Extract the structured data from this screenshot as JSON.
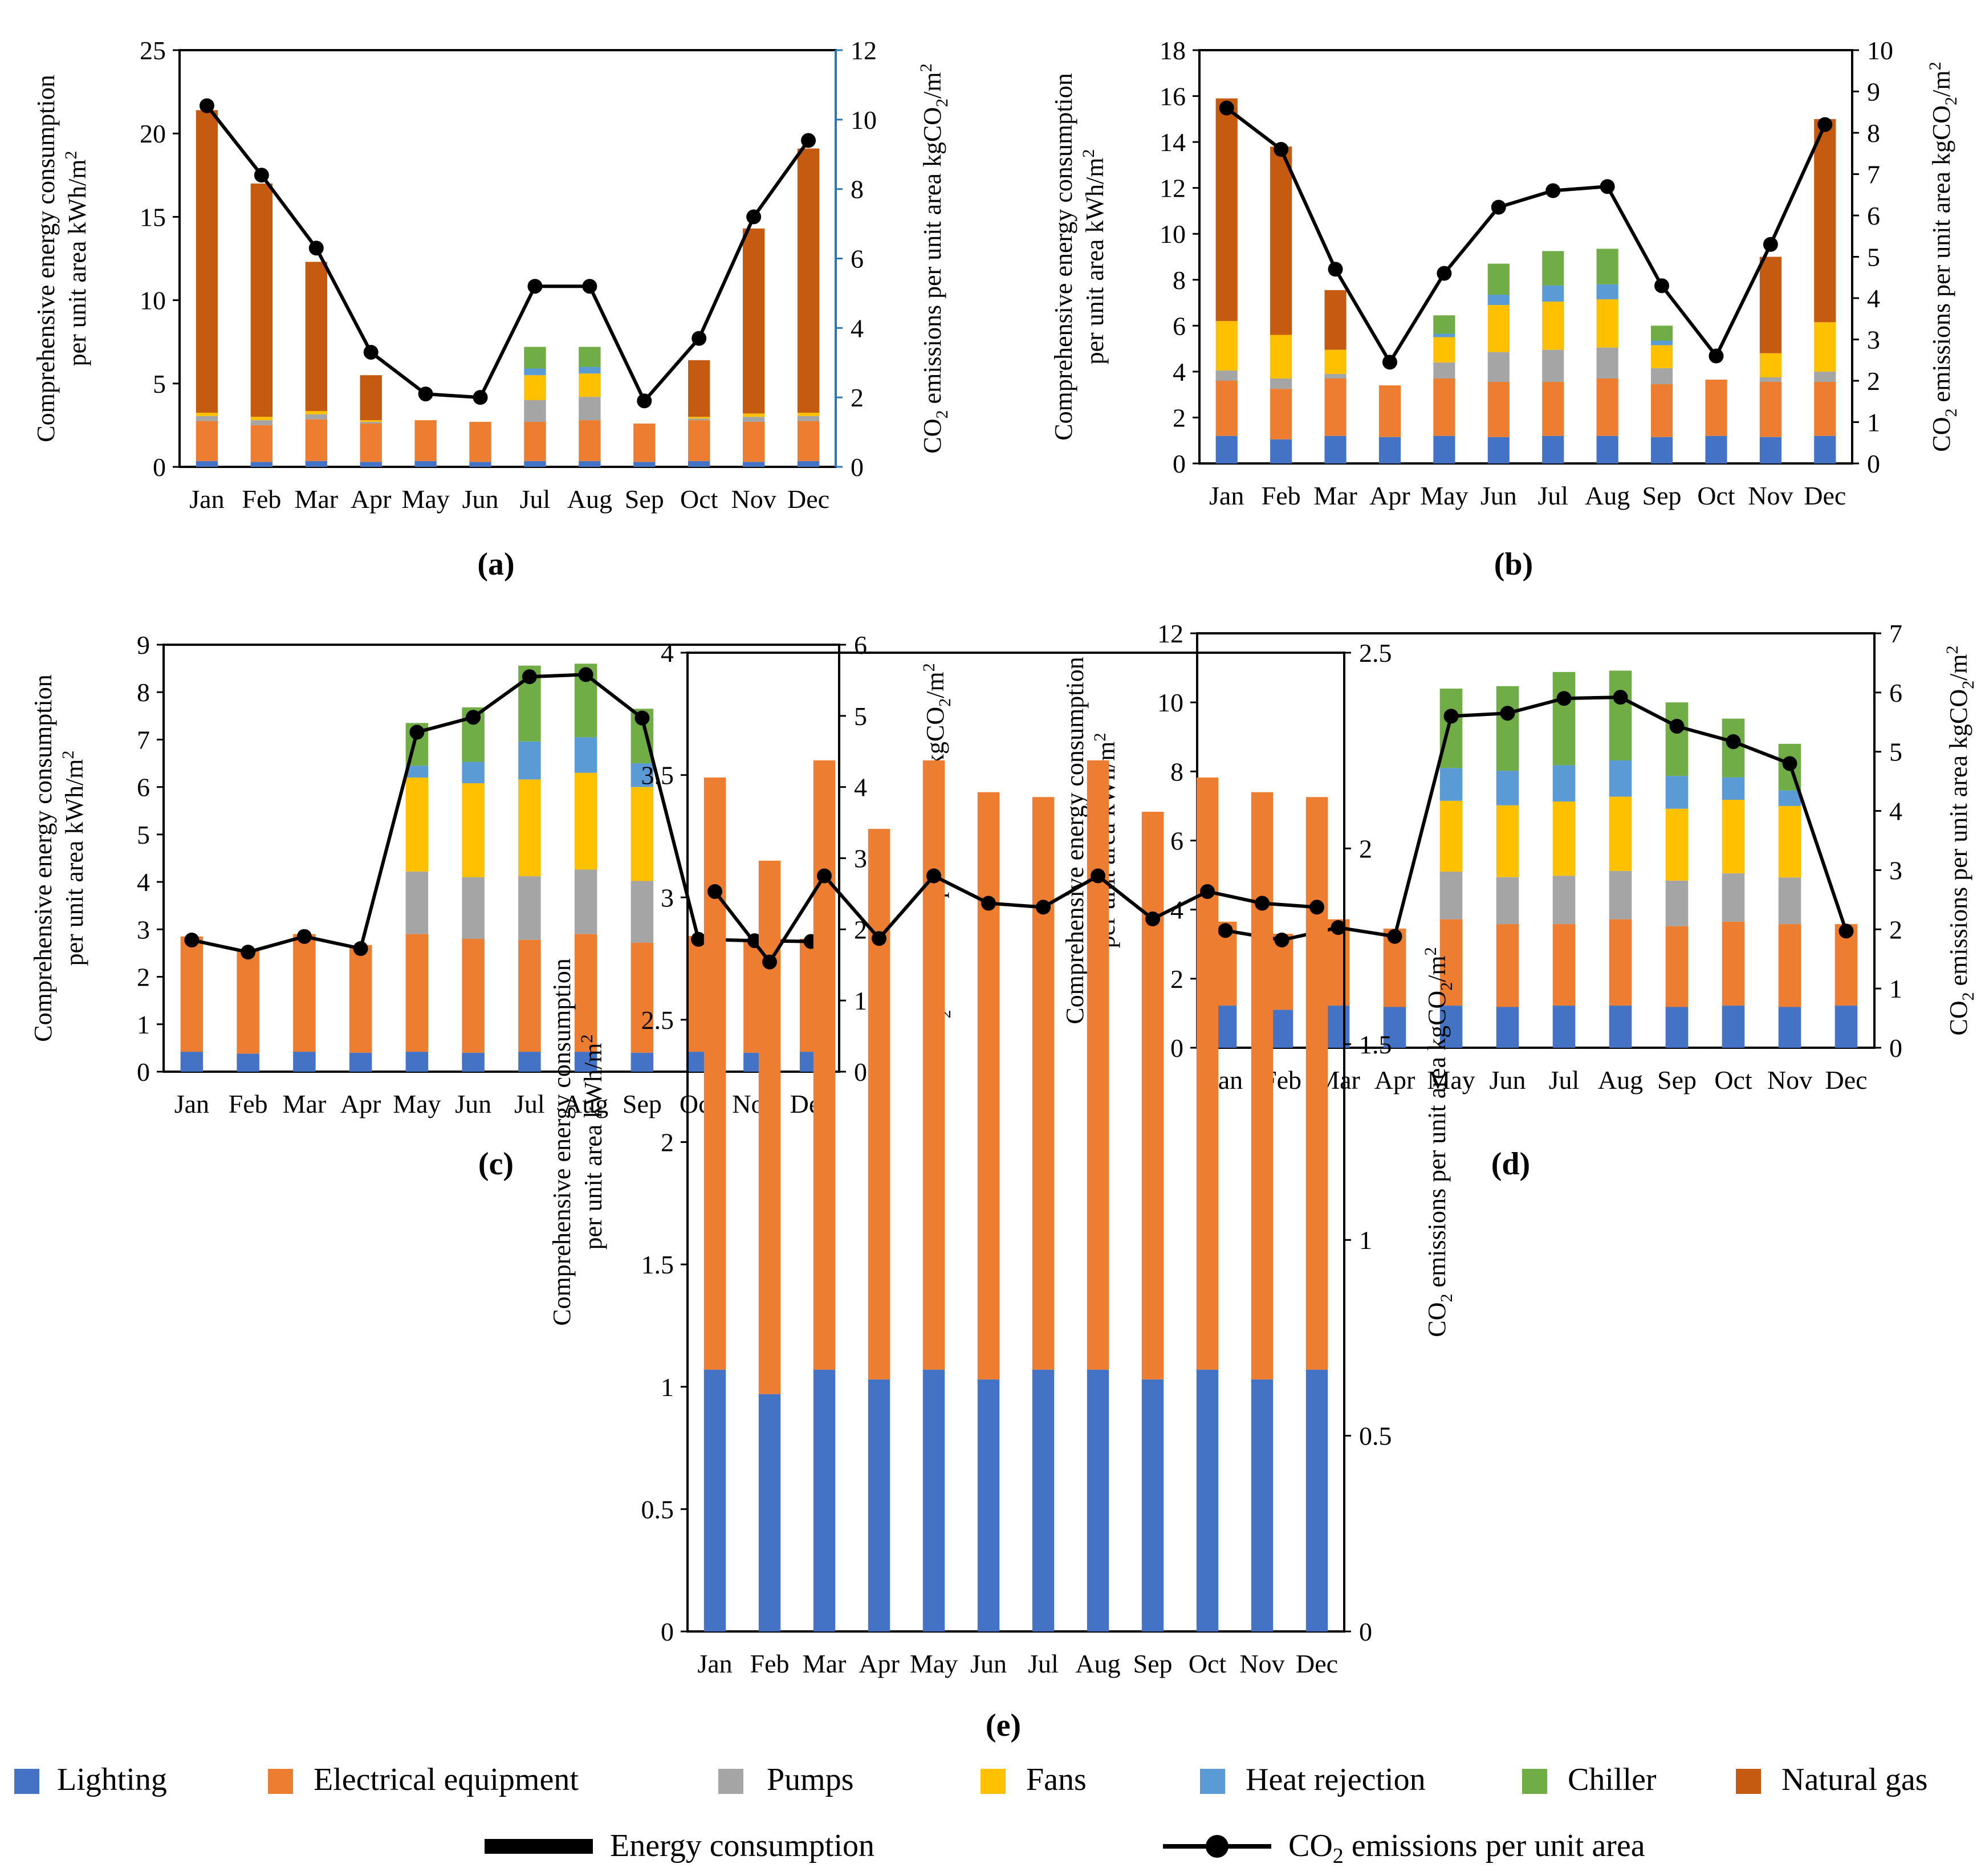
{
  "months": [
    "Jan",
    "Feb",
    "Mar",
    "Apr",
    "May",
    "Jun",
    "Jul",
    "Aug",
    "Sep",
    "Oct",
    "Nov",
    "Dec"
  ],
  "components": [
    {
      "key": "lighting",
      "name": "Lighting",
      "color": "#4472c4"
    },
    {
      "key": "electrical",
      "name": "Electrical equipment",
      "color": "#ed7d31"
    },
    {
      "key": "pumps",
      "name": "Pumps",
      "color": "#a5a5a5"
    },
    {
      "key": "fans",
      "name": "Fans",
      "color": "#ffc000"
    },
    {
      "key": "heat_rejection",
      "name": "Heat rejection",
      "color": "#5b9bd5"
    },
    {
      "key": "chiller",
      "name": "Chiller",
      "color": "#70ad47"
    },
    {
      "key": "natural_gas",
      "name": "Natural gas",
      "color": "#c55a11"
    }
  ],
  "legend": {
    "energy_consumption": "Energy consumption",
    "co2_prefix": "CO",
    "co2_sub": "2",
    "co2_suffix": " emissions per unit area"
  },
  "axis_text": {
    "left_line1": "Comprehensive energy consumption",
    "left_line2": "per unit area kWh/m",
    "left_sup": "2",
    "right_pre": "CO",
    "right_sub": "2",
    "right_mid": " emissions per unit area kgCO",
    "right_sub2": "2",
    "right_post": "/m",
    "right_sup": "2"
  },
  "chart_data": [
    {
      "type": "bar",
      "panel_label": "(a)",
      "categories": [
        "Jan",
        "Feb",
        "Mar",
        "Apr",
        "May",
        "Jun",
        "Jul",
        "Aug",
        "Sep",
        "Oct",
        "Nov",
        "Dec"
      ],
      "ylabel": "Comprehensive energy consumption per unit area kWh/m2",
      "y2label": "CO2 emissions per unit area kgCO2/m2",
      "ylim": [
        0,
        25
      ],
      "yticks": [
        0,
        5,
        10,
        15,
        20,
        25
      ],
      "y2lim": [
        0,
        12
      ],
      "y2ticks": [
        0,
        2,
        4,
        6,
        8,
        10,
        12
      ],
      "series": [
        {
          "name": "Lighting",
          "values": [
            0.35,
            0.3,
            0.35,
            0.3,
            0.35,
            0.3,
            0.35,
            0.35,
            0.3,
            0.35,
            0.3,
            0.35
          ]
        },
        {
          "name": "Electrical equipment",
          "values": [
            2.4,
            2.2,
            2.5,
            2.3,
            2.45,
            2.4,
            2.35,
            2.45,
            2.3,
            2.45,
            2.4,
            2.4
          ]
        },
        {
          "name": "Pumps",
          "values": [
            0.3,
            0.3,
            0.3,
            0.1,
            0,
            0,
            1.3,
            1.4,
            0,
            0.1,
            0.3,
            0.3
          ]
        },
        {
          "name": "Fans",
          "values": [
            0.2,
            0.2,
            0.2,
            0.1,
            0,
            0,
            1.5,
            1.4,
            0,
            0.1,
            0.2,
            0.2
          ]
        },
        {
          "name": "Heat rejection",
          "values": [
            0,
            0,
            0,
            0,
            0,
            0,
            0.4,
            0.4,
            0,
            0,
            0,
            0
          ]
        },
        {
          "name": "Chiller",
          "values": [
            0,
            0,
            0,
            0,
            0,
            0,
            1.3,
            1.2,
            0,
            0,
            0,
            0
          ]
        },
        {
          "name": "Natural gas",
          "values": [
            18.15,
            14.0,
            8.95,
            2.7,
            0,
            0,
            0,
            0,
            0,
            3.4,
            11.1,
            15.85
          ]
        }
      ],
      "line": {
        "name": "CO2 emissions per unit area",
        "axis": "right",
        "values": [
          10.4,
          8.4,
          6.3,
          3.3,
          2.1,
          2.0,
          5.2,
          5.2,
          1.9,
          3.7,
          7.2,
          9.4
        ]
      }
    },
    {
      "type": "bar",
      "panel_label": "(b)",
      "categories": [
        "Jan",
        "Feb",
        "Mar",
        "Apr",
        "May",
        "Jun",
        "Jul",
        "Aug",
        "Sep",
        "Oct",
        "Nov",
        "Dec"
      ],
      "ylabel": "Comprehensive energy consumption per unit area kWh/m2",
      "y2label": "CO2 emissions per unit area kgCO2/m2",
      "ylim": [
        0,
        18
      ],
      "yticks": [
        0,
        2,
        4,
        6,
        8,
        10,
        12,
        14,
        16,
        18
      ],
      "y2lim": [
        0,
        10
      ],
      "y2ticks": [
        0,
        1,
        2,
        3,
        4,
        5,
        6,
        7,
        8,
        9,
        10
      ],
      "series": [
        {
          "name": "Lighting",
          "values": [
            1.2,
            1.05,
            1.2,
            1.15,
            1.2,
            1.15,
            1.2,
            1.2,
            1.15,
            1.2,
            1.15,
            1.2
          ]
        },
        {
          "name": "Electrical equipment",
          "values": [
            2.4,
            2.2,
            2.5,
            2.25,
            2.5,
            2.4,
            2.35,
            2.5,
            2.3,
            2.45,
            2.4,
            2.35
          ]
        },
        {
          "name": "Pumps",
          "values": [
            0.45,
            0.45,
            0.2,
            0,
            0.7,
            1.3,
            1.4,
            1.35,
            0.7,
            0,
            0.2,
            0.45
          ]
        },
        {
          "name": "Fans",
          "values": [
            2.15,
            1.9,
            1.05,
            0,
            1.1,
            2.05,
            2.1,
            2.1,
            1.0,
            0,
            1.05,
            2.15
          ]
        },
        {
          "name": "Heat rejection",
          "values": [
            0,
            0,
            0,
            0,
            0.15,
            0.45,
            0.7,
            0.65,
            0.2,
            0,
            0,
            0
          ]
        },
        {
          "name": "Chiller",
          "values": [
            0,
            0,
            0,
            0,
            0.8,
            1.35,
            1.5,
            1.55,
            0.65,
            0,
            0,
            0
          ]
        },
        {
          "name": "Natural gas",
          "values": [
            9.7,
            8.2,
            2.6,
            0,
            0,
            0,
            0,
            0,
            0,
            0,
            4.2,
            8.85
          ]
        }
      ],
      "line": {
        "name": "CO2 emissions per unit area",
        "axis": "right",
        "values": [
          8.6,
          7.6,
          4.7,
          2.45,
          4.6,
          6.2,
          6.6,
          6.7,
          4.3,
          2.6,
          5.3,
          8.2
        ]
      }
    },
    {
      "type": "bar",
      "panel_label": "(c)",
      "categories": [
        "Jan",
        "Feb",
        "Mar",
        "Apr",
        "May",
        "Jun",
        "Jul",
        "Aug",
        "Sep",
        "Oct",
        "Nov",
        "Dec"
      ],
      "ylabel": "Comprehensive energy consumption per unit area kWh/m2",
      "y2label": "CO2 emissions per unit area kgCO2/m2",
      "ylim": [
        0,
        9
      ],
      "yticks": [
        0,
        1,
        2,
        3,
        4,
        5,
        6,
        7,
        8,
        9
      ],
      "y2lim": [
        0,
        6
      ],
      "y2ticks": [
        0,
        1,
        2,
        3,
        4,
        5,
        6
      ],
      "series": [
        {
          "name": "Lighting",
          "values": [
            0.42,
            0.38,
            0.42,
            0.4,
            0.42,
            0.4,
            0.42,
            0.42,
            0.4,
            0.42,
            0.4,
            0.42
          ]
        },
        {
          "name": "Electrical equipment",
          "values": [
            2.43,
            2.2,
            2.48,
            2.27,
            2.48,
            2.4,
            2.36,
            2.48,
            2.32,
            2.44,
            2.38,
            2.38
          ]
        },
        {
          "name": "Pumps",
          "values": [
            0,
            0,
            0,
            0,
            1.32,
            1.3,
            1.34,
            1.36,
            1.3,
            0,
            0,
            0
          ]
        },
        {
          "name": "Fans",
          "values": [
            0,
            0,
            0,
            0,
            1.98,
            1.98,
            2.04,
            2.04,
            1.98,
            0,
            0,
            0
          ]
        },
        {
          "name": "Heat rejection",
          "values": [
            0,
            0,
            0,
            0,
            0.25,
            0.45,
            0.8,
            0.75,
            0.5,
            0,
            0,
            0
          ]
        },
        {
          "name": "Chiller",
          "values": [
            0,
            0,
            0,
            0,
            0.9,
            1.15,
            1.6,
            1.55,
            1.15,
            0,
            0,
            0
          ]
        },
        {
          "name": "Natural gas",
          "values": [
            0,
            0,
            0,
            0,
            0,
            0,
            0,
            0,
            0,
            0,
            0,
            0
          ]
        }
      ],
      "line": {
        "name": "CO2 emissions per unit area",
        "axis": "right",
        "values": [
          1.85,
          1.68,
          1.9,
          1.73,
          4.77,
          4.98,
          5.55,
          5.58,
          4.97,
          1.86,
          1.84,
          1.83
        ]
      }
    },
    {
      "type": "bar",
      "panel_label": "(d)",
      "categories": [
        "Jan",
        "Feb",
        "Mar",
        "Apr",
        "May",
        "Jun",
        "Jul",
        "Aug",
        "Sep",
        "Oct",
        "Nov",
        "Dec"
      ],
      "ylabel": "Comprehensive energy consumption per unit area kWh/m2",
      "y2label": "CO2 emissions per unit area kgCO2/m2",
      "ylim": [
        0,
        12
      ],
      "yticks": [
        0,
        2,
        4,
        6,
        8,
        10,
        12
      ],
      "y2lim": [
        0,
        7
      ],
      "y2ticks": [
        0,
        1,
        2,
        3,
        4,
        5,
        6,
        7
      ],
      "series": [
        {
          "name": "Lighting",
          "values": [
            1.22,
            1.1,
            1.22,
            1.18,
            1.22,
            1.18,
            1.22,
            1.22,
            1.18,
            1.22,
            1.18,
            1.22
          ]
        },
        {
          "name": "Electrical equipment",
          "values": [
            2.43,
            2.2,
            2.5,
            2.27,
            2.5,
            2.4,
            2.36,
            2.5,
            2.34,
            2.43,
            2.4,
            2.36
          ]
        },
        {
          "name": "Pumps",
          "values": [
            0,
            0,
            0,
            0,
            1.38,
            1.36,
            1.4,
            1.4,
            1.32,
            1.4,
            1.35,
            0
          ]
        },
        {
          "name": "Fans",
          "values": [
            0,
            0,
            0,
            0,
            2.05,
            2.08,
            2.15,
            2.15,
            2.08,
            2.13,
            2.07,
            0
          ]
        },
        {
          "name": "Heat rejection",
          "values": [
            0,
            0,
            0,
            0,
            0.95,
            1.0,
            1.05,
            1.05,
            0.95,
            0.65,
            0.45,
            0
          ]
        },
        {
          "name": "Chiller",
          "values": [
            0,
            0,
            0,
            0,
            2.3,
            2.45,
            2.7,
            2.6,
            2.13,
            1.7,
            1.35,
            0
          ]
        },
        {
          "name": "Natural gas",
          "values": [
            0,
            0,
            0,
            0,
            0,
            0,
            0,
            0,
            0,
            0,
            0,
            0
          ]
        }
      ],
      "line": {
        "name": "CO2 emissions per unit area",
        "axis": "right",
        "values": [
          1.98,
          1.82,
          2.03,
          1.88,
          5.6,
          5.65,
          5.9,
          5.92,
          5.43,
          5.17,
          4.8,
          1.97
        ]
      }
    },
    {
      "type": "bar",
      "panel_label": "(e)",
      "categories": [
        "Jan",
        "Feb",
        "Mar",
        "Apr",
        "May",
        "Jun",
        "Jul",
        "Aug",
        "Sep",
        "Oct",
        "Nov",
        "Dec"
      ],
      "ylabel": "Comprehensive energy consumption per unit area kWh/m2",
      "y2label": "CO2 emissions per unit area kgCO2/m2",
      "ylim": [
        0,
        4
      ],
      "yticks": [
        0,
        0.5,
        1,
        1.5,
        2,
        2.5,
        3,
        3.5,
        4
      ],
      "y2lim": [
        0,
        2.5
      ],
      "y2ticks": [
        0,
        0.5,
        1,
        1.5,
        2,
        2.5
      ],
      "series": [
        {
          "name": "Lighting",
          "values": [
            1.07,
            0.97,
            1.07,
            1.03,
            1.07,
            1.03,
            1.07,
            1.07,
            1.03,
            1.07,
            1.03,
            1.07
          ]
        },
        {
          "name": "Electrical equipment",
          "values": [
            2.42,
            2.18,
            2.49,
            2.25,
            2.49,
            2.4,
            2.34,
            2.49,
            2.32,
            2.42,
            2.4,
            2.34
          ]
        },
        {
          "name": "Pumps",
          "values": [
            0,
            0,
            0,
            0,
            0,
            0,
            0,
            0,
            0,
            0,
            0,
            0
          ]
        },
        {
          "name": "Fans",
          "values": [
            0,
            0,
            0,
            0,
            0,
            0,
            0,
            0,
            0,
            0,
            0,
            0
          ]
        },
        {
          "name": "Heat rejection",
          "values": [
            0,
            0,
            0,
            0,
            0,
            0,
            0,
            0,
            0,
            0,
            0,
            0
          ]
        },
        {
          "name": "Chiller",
          "values": [
            0,
            0,
            0,
            0,
            0,
            0,
            0,
            0,
            0,
            0,
            0,
            0
          ]
        },
        {
          "name": "Natural gas",
          "values": [
            0,
            0,
            0,
            0,
            0,
            0,
            0,
            0,
            0,
            0,
            0,
            0
          ]
        }
      ],
      "line": {
        "name": "CO2 emissions per unit area",
        "axis": "right",
        "values": [
          1.89,
          1.71,
          1.93,
          1.77,
          1.93,
          1.86,
          1.85,
          1.93,
          1.82,
          1.89,
          1.86,
          1.85
        ]
      }
    }
  ]
}
